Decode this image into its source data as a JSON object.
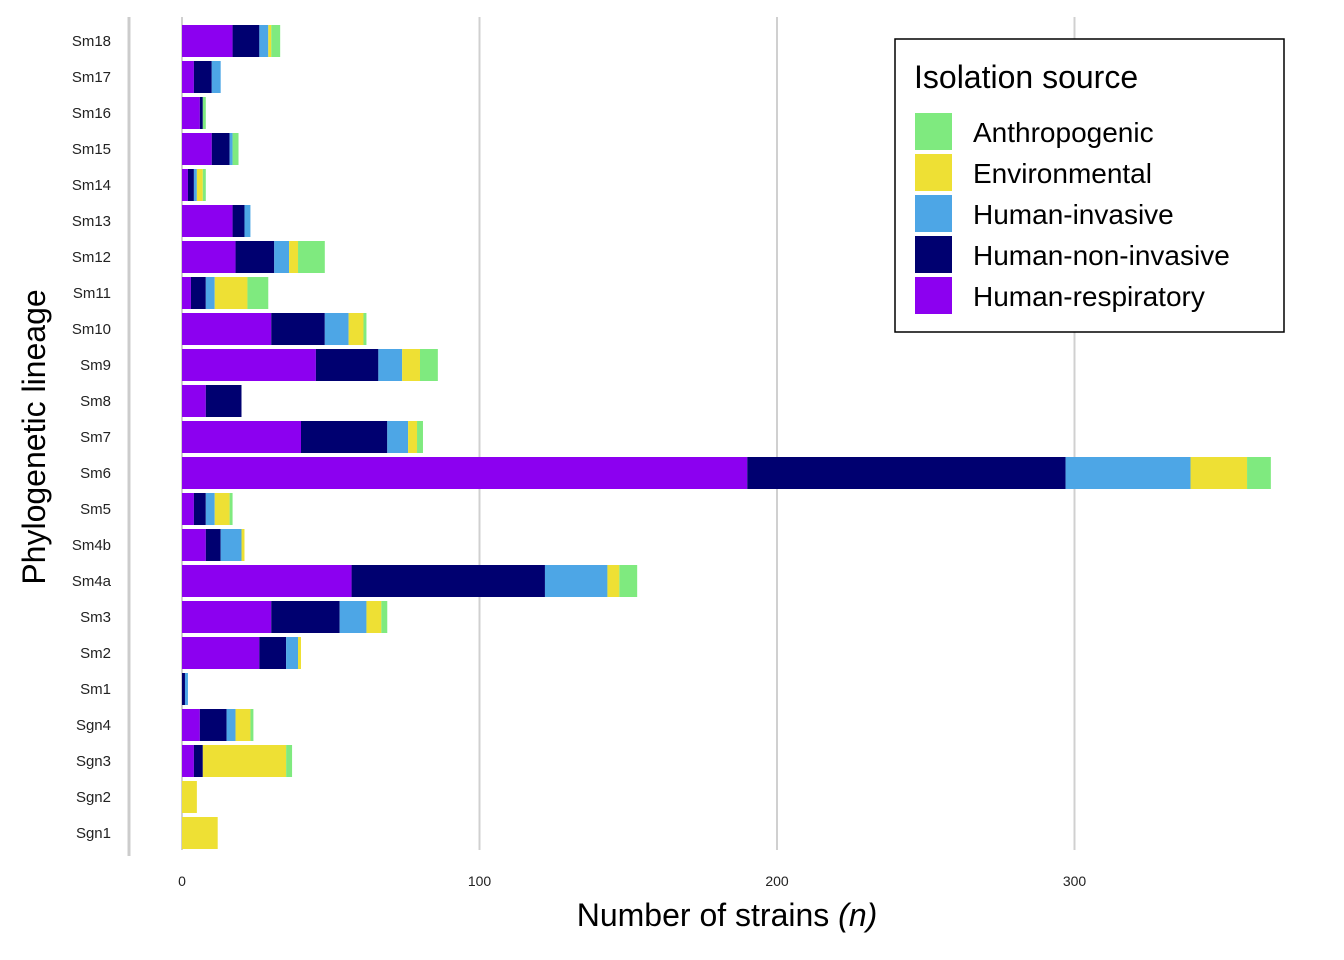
{
  "chart_data": {
    "type": "bar",
    "orientation": "horizontal",
    "stacked": true,
    "categories": [
      "Sm18",
      "Sm17",
      "Sm16",
      "Sm15",
      "Sm14",
      "Sm13",
      "Sm12",
      "Sm11",
      "Sm10",
      "Sm9",
      "Sm8",
      "Sm7",
      "Sm6",
      "Sm5",
      "Sm4b",
      "Sm4a",
      "Sm3",
      "Sm2",
      "Sm1",
      "Sgn4",
      "Sgn3",
      "Sgn2",
      "Sgn1"
    ],
    "series": [
      {
        "name": "Human-respiratory",
        "color": "#8C00F0",
        "values": [
          17,
          4,
          6,
          10,
          2,
          17,
          18,
          3,
          30,
          45,
          8,
          40,
          190,
          4,
          8,
          57,
          30,
          26,
          0,
          6,
          4,
          0,
          0
        ]
      },
      {
        "name": "Human-non-invasive",
        "color": "#000070",
        "values": [
          9,
          6,
          1,
          6,
          2,
          4,
          13,
          5,
          18,
          21,
          12,
          29,
          107,
          4,
          5,
          65,
          23,
          9,
          1,
          9,
          3,
          0,
          0
        ]
      },
      {
        "name": "Human-invasive",
        "color": "#4DA6E6",
        "values": [
          3,
          3,
          0,
          1,
          1,
          2,
          5,
          3,
          8,
          8,
          0,
          7,
          42,
          3,
          7,
          21,
          9,
          4,
          1,
          3,
          0,
          0,
          0
        ]
      },
      {
        "name": "Environmental",
        "color": "#EEE034",
        "values": [
          1,
          0,
          0,
          0,
          2,
          0,
          3,
          11,
          5,
          6,
          0,
          3,
          19,
          5,
          1,
          4,
          5,
          1,
          0,
          5,
          28,
          5,
          12
        ]
      },
      {
        "name": "Anthropogenic",
        "color": "#7FEA7F",
        "values": [
          3,
          0,
          1,
          2,
          1,
          0,
          9,
          7,
          1,
          6,
          0,
          2,
          8,
          1,
          0,
          6,
          2,
          0,
          0,
          1,
          2,
          0,
          0
        ]
      }
    ],
    "legend_order": [
      "Anthropogenic",
      "Environmental",
      "Human-invasive",
      "Human-non-invasive",
      "Human-respiratory"
    ],
    "legend_title": "Isolation source",
    "legend_position": "top-right",
    "xlabel": "Number of strains",
    "xlabel_italic": "(n)",
    "ylabel": "Phylogenetic lineage",
    "xlim": [
      0,
      366
    ],
    "xticks": [
      0,
      100,
      200,
      300
    ],
    "grid_vertical": true
  }
}
